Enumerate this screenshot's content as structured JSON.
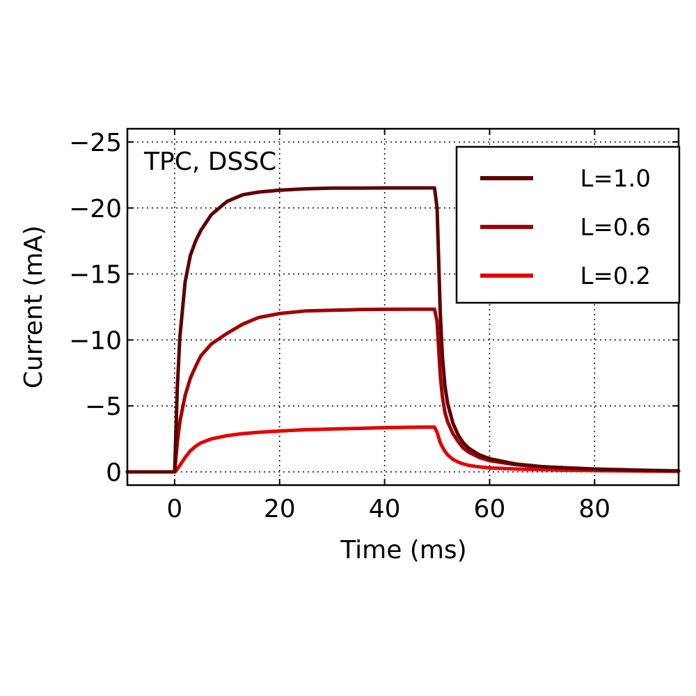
{
  "chart_data": {
    "type": "line",
    "title": "",
    "xlabel": "Time (ms)",
    "ylabel": "Current (mA)",
    "annotation": "TPC, DSSC",
    "xlim": [
      -9,
      96
    ],
    "ylim": [
      1,
      -26
    ],
    "y_inverted": true,
    "grid": true,
    "legend_position": "top-right",
    "x_ticks": [
      0,
      20,
      40,
      60,
      80
    ],
    "x_tick_labels": [
      "0",
      "20",
      "40",
      "60",
      "80"
    ],
    "y_ticks": [
      0,
      -5,
      -10,
      -15,
      -20,
      -25
    ],
    "y_tick_labels": [
      "0",
      "−5",
      "−10",
      "−15",
      "−20",
      "−25"
    ],
    "series": [
      {
        "name": "L=1.0",
        "color": "#5c0000",
        "x": [
          -9,
          -0.5,
          0,
          0.5,
          1,
          2,
          3,
          4,
          5,
          7,
          10,
          13,
          16,
          20,
          25,
          30,
          35,
          40,
          45,
          49.5,
          50,
          50.3,
          50.6,
          51,
          51.5,
          52,
          53,
          54,
          55,
          56,
          58,
          60,
          65,
          70,
          75,
          80,
          85,
          90,
          96
        ],
        "y": [
          0,
          0,
          0,
          -6.3,
          -10.2,
          -14.4,
          -16.4,
          -17.5,
          -18.3,
          -19.5,
          -20.5,
          -21.0,
          -21.2,
          -21.35,
          -21.45,
          -21.5,
          -21.5,
          -21.52,
          -21.52,
          -21.52,
          -20,
          -16,
          -12,
          -8.8,
          -6.5,
          -5.2,
          -3.7,
          -2.8,
          -2.2,
          -1.8,
          -1.3,
          -1.0,
          -0.6,
          -0.4,
          -0.3,
          -0.22,
          -0.17,
          -0.12,
          -0.08
        ]
      },
      {
        "name": "L=0.6",
        "color": "#a00000",
        "x": [
          -9,
          -0.5,
          0,
          0.5,
          1,
          2,
          3,
          4,
          5,
          7,
          10,
          13,
          16,
          20,
          25,
          30,
          35,
          40,
          45,
          49.5,
          50,
          50.3,
          50.6,
          51,
          51.5,
          52,
          53,
          54,
          55,
          56,
          58,
          60,
          65,
          70,
          75,
          80,
          85,
          90,
          96
        ],
        "y": [
          0,
          0,
          0,
          -2.2,
          -3.8,
          -5.8,
          -7.1,
          -8.0,
          -8.8,
          -9.7,
          -10.5,
          -11.2,
          -11.7,
          -12.0,
          -12.2,
          -12.25,
          -12.3,
          -12.32,
          -12.33,
          -12.33,
          -11.4,
          -9.3,
          -7.3,
          -5.7,
          -4.5,
          -3.8,
          -2.9,
          -2.3,
          -1.8,
          -1.5,
          -1.1,
          -0.85,
          -0.55,
          -0.38,
          -0.28,
          -0.2,
          -0.15,
          -0.1,
          -0.07
        ]
      },
      {
        "name": "L=0.2",
        "color": "#e30000",
        "x": [
          -9,
          -0.5,
          0,
          0.5,
          1,
          2,
          3,
          4,
          5,
          7,
          10,
          13,
          16,
          20,
          25,
          30,
          35,
          40,
          45,
          49.5,
          50,
          50.3,
          50.6,
          51,
          51.5,
          52,
          53,
          54,
          55,
          56,
          58,
          60,
          65,
          70,
          75,
          80,
          85,
          90,
          96
        ],
        "y": [
          0,
          0,
          0,
          -0.2,
          -0.5,
          -1.1,
          -1.6,
          -1.95,
          -2.2,
          -2.5,
          -2.75,
          -2.9,
          -3.0,
          -3.1,
          -3.2,
          -3.25,
          -3.3,
          -3.35,
          -3.38,
          -3.4,
          -3.0,
          -2.6,
          -2.2,
          -1.9,
          -1.55,
          -1.3,
          -0.95,
          -0.75,
          -0.6,
          -0.5,
          -0.38,
          -0.3,
          -0.22,
          -0.17,
          -0.13,
          -0.1,
          -0.08,
          -0.06,
          -0.05
        ]
      }
    ]
  }
}
